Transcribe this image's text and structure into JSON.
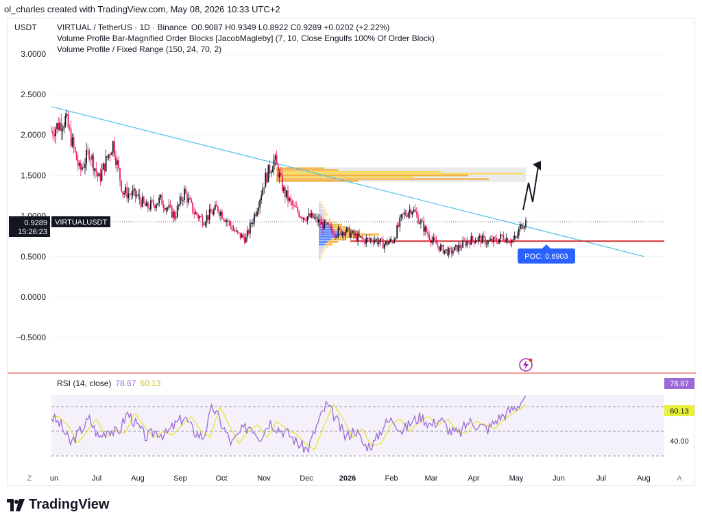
{
  "attribution": "ol_charles created with TradingView.com, May 08, 2026 10:33 UTC+2",
  "currency": "USDT",
  "legend": {
    "symbol_line": "VIRTUAL / TetherUS · 1D · Binance",
    "ohlc": "O0.9087  H0.9349  L0.8922  C0.9289  +0.0202 (+2.22%)",
    "indicator_1": "Volume Profile Bar-Magnified Order Blocks [JacobMagleby] (7, 10, Close Engulfs 100% Of Order Block)",
    "indicator_2": "Volume Profile / Fixed Range (150, 24, 70, 2)"
  },
  "price_tag": {
    "price": "0.9289",
    "countdown": "15:26:23",
    "symbol": "VIRTUALUSDT"
  },
  "poc_label": "POC: 0.6903",
  "rsi": {
    "label": "RSI (14, close)",
    "value": "78.67",
    "ma_value": "60.13",
    "level_label": "40.00"
  },
  "corner_left": "Z",
  "corner_right": "A",
  "branding": "TradingView",
  "colors": {
    "up": "#131722",
    "down": "#e91e63",
    "trendline": "#4dbfe6",
    "poc": "#d32f2f",
    "rsi": "#9c6ad6",
    "rsi_ma": "#e6e62e",
    "ob_orange": "#f5a623",
    "ob_yellow": "#f7d64a",
    "poc_badge": "#2962ff"
  },
  "chart_data": [
    {
      "type": "candlestick",
      "y_ticks": [
        "3.0000",
        "2.5000",
        "2.0000",
        "1.5000",
        "1.0000",
        "0.5000",
        "0.0000",
        "−0.5000"
      ],
      "y_values": [
        3.0,
        2.5,
        2.0,
        1.5,
        1.0,
        0.5,
        0.0,
        -0.5
      ],
      "ylim": [
        -0.6,
        3.1
      ],
      "x_labels": [
        "un",
        "Jul",
        "Aug",
        "Sep",
        "Oct",
        "Nov",
        "Dec",
        "2026",
        "Feb",
        "Mar",
        "Apr",
        "May",
        "Jun",
        "Jul",
        "Aug"
      ],
      "bold_x_label": "2026",
      "close_path": [
        [
          0,
          2.05
        ],
        [
          0.03,
          2.2
        ],
        [
          0.06,
          1.55
        ],
        [
          0.08,
          1.8
        ],
        [
          0.1,
          1.45
        ],
        [
          0.13,
          1.9
        ],
        [
          0.15,
          1.3
        ],
        [
          0.18,
          1.25
        ],
        [
          0.2,
          1.1
        ],
        [
          0.23,
          1.2
        ],
        [
          0.26,
          1.0
        ],
        [
          0.28,
          1.3
        ],
        [
          0.3,
          1.05
        ],
        [
          0.32,
          0.95
        ],
        [
          0.35,
          1.1
        ],
        [
          0.37,
          0.95
        ],
        [
          0.39,
          0.78
        ],
        [
          0.41,
          0.72
        ],
        [
          0.43,
          1.05
        ],
        [
          0.45,
          1.45
        ],
        [
          0.47,
          1.7
        ],
        [
          0.49,
          1.3
        ],
        [
          0.51,
          1.1
        ],
        [
          0.53,
          1.0
        ],
        [
          0.55,
          0.98
        ],
        [
          0.57,
          0.9
        ],
        [
          0.6,
          0.8
        ],
        [
          0.62,
          0.82
        ],
        [
          0.64,
          0.75
        ],
        [
          0.66,
          0.7
        ],
        [
          0.68,
          0.72
        ],
        [
          0.7,
          0.65
        ],
        [
          0.72,
          0.7
        ],
        [
          0.74,
          1.0
        ],
        [
          0.75,
          1.05
        ],
        [
          0.76,
          1.1
        ],
        [
          0.78,
          0.9
        ],
        [
          0.8,
          0.72
        ],
        [
          0.82,
          0.6
        ],
        [
          0.84,
          0.55
        ],
        [
          0.86,
          0.62
        ],
        [
          0.88,
          0.7
        ],
        [
          0.9,
          0.72
        ],
        [
          0.92,
          0.68
        ],
        [
          0.94,
          0.7
        ],
        [
          0.95,
          0.75
        ],
        [
          0.96,
          0.72
        ],
        [
          0.97,
          0.7
        ],
        [
          0.98,
          0.72
        ],
        [
          0.99,
          0.9
        ],
        [
          1.0,
          0.93
        ]
      ],
      "trendline": {
        "start": [
          0.0,
          2.35
        ],
        "end": [
          1.25,
          0.5
        ]
      },
      "poc_level": 0.6903,
      "order_block": {
        "top": 1.6,
        "bottom": 1.42
      }
    },
    {
      "type": "line",
      "series": [
        {
          "name": "RSI",
          "values": [
            62,
            55,
            40,
            50,
            60,
            45,
            52,
            48,
            65,
            55,
            45,
            50,
            47,
            55,
            62,
            50,
            45,
            70,
            55,
            40,
            50,
            55,
            45,
            58,
            52,
            48,
            40,
            35,
            55,
            72,
            60,
            45,
            52,
            38,
            40,
            55,
            60,
            50,
            58,
            62,
            55,
            60,
            50,
            48,
            58,
            55,
            52,
            60,
            65,
            70,
            78.67
          ]
        }
      ],
      "levels": [
        70,
        50,
        30
      ],
      "ylim": [
        25,
        85
      ]
    }
  ]
}
